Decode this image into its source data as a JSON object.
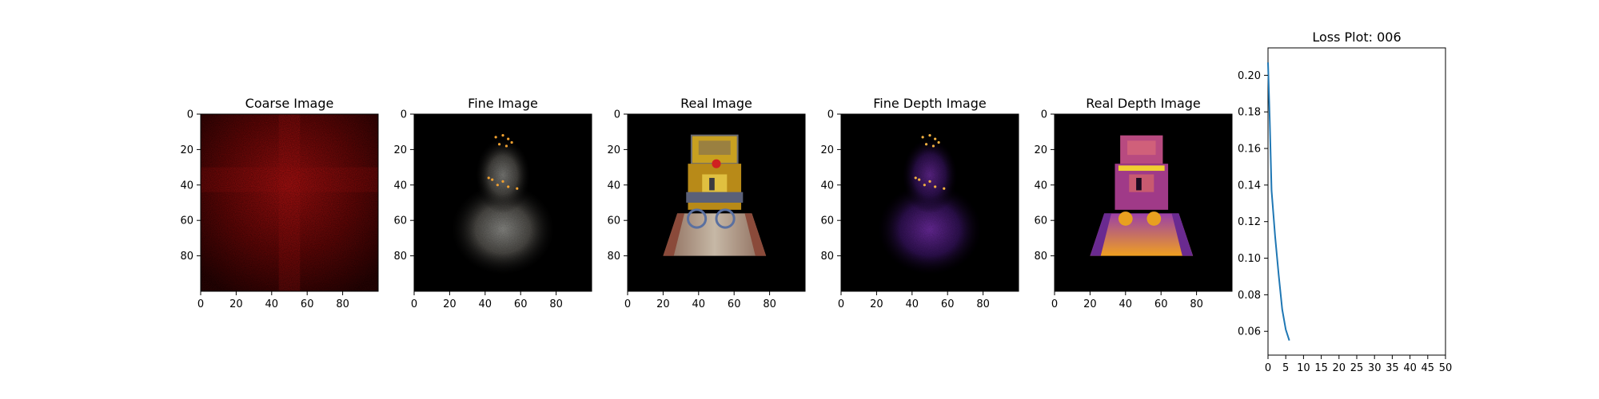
{
  "figure": {
    "panels": [
      {
        "title": "Coarse Image",
        "kind": "coarse"
      },
      {
        "title": "Fine Image",
        "kind": "fine"
      },
      {
        "title": "Real Image",
        "kind": "real"
      },
      {
        "title": "Fine Depth Image",
        "kind": "fine-depth"
      },
      {
        "title": "Real Depth Image",
        "kind": "real-depth"
      }
    ],
    "image_ticks": [
      0,
      20,
      40,
      60,
      80
    ],
    "image_tick_labels": [
      "0",
      "20",
      "40",
      "60",
      "80"
    ]
  },
  "chart_data": [
    {
      "type": "line",
      "title": "Loss Plot: 006",
      "xlabel": "",
      "ylabel": "",
      "x": [
        0,
        1,
        2,
        3,
        4,
        5,
        6
      ],
      "series": [
        {
          "values": [
            0.207,
            0.175,
            0.137,
            0.112,
            0.091,
            0.072,
            0.061,
            0.055
          ],
          "x": [
            0,
            0.5,
            1,
            2,
            3,
            4,
            5,
            6
          ]
        }
      ],
      "xlim": [
        0,
        50
      ],
      "ylim": [
        0.047,
        0.215
      ],
      "xticks": [
        0,
        5,
        10,
        15,
        20,
        25,
        30,
        35,
        40,
        45,
        50
      ],
      "yticks": [
        0.06,
        0.08,
        0.1,
        0.12,
        0.14,
        0.16,
        0.18,
        0.2
      ],
      "ytick_labels": [
        "0.06",
        "0.08",
        "0.10",
        "0.12",
        "0.14",
        "0.16",
        "0.18",
        "0.20"
      ],
      "line_color": "#1f77b4",
      "grid": false
    }
  ]
}
